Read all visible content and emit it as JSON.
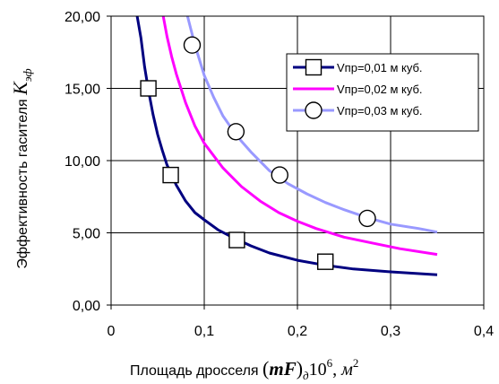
{
  "chart_data": {
    "type": "line",
    "xlabel": {
      "prefix": "Площадь дросселя",
      "formula_main": "(mF)",
      "formula_sub": "д",
      "formula_mid": "10",
      "formula_exp": "6",
      "formula_sep": ", ",
      "formula_unit": "м",
      "formula_unit_exp": "2"
    },
    "ylabel": {
      "prefix": "Эффективность гасителя",
      "symbol": "K",
      "symbol_sub": "эф"
    },
    "xlim": [
      0,
      0.4
    ],
    "ylim": [
      0,
      20
    ],
    "x_ticks": [
      "0",
      "0,1",
      "0,2",
      "0,3",
      "0,4"
    ],
    "x_tick_values": [
      0,
      0.1,
      0.2,
      0.3,
      0.4
    ],
    "y_ticks": [
      "0,00",
      "5,00",
      "10,00",
      "15,00",
      "20,00"
    ],
    "y_tick_values": [
      0,
      5,
      10,
      15,
      20
    ],
    "grid": true,
    "legend_position": "top-right",
    "series": [
      {
        "name": "Vпр=0,01 м куб.",
        "color": "#000080",
        "marker": "square",
        "curve": [
          [
            0.028,
            20.0
          ],
          [
            0.032,
            18.5
          ],
          [
            0.036,
            16.5
          ],
          [
            0.04,
            14.9
          ],
          [
            0.045,
            13.2
          ],
          [
            0.05,
            11.8
          ],
          [
            0.055,
            10.7
          ],
          [
            0.06,
            9.7
          ],
          [
            0.065,
            9.0
          ],
          [
            0.07,
            8.3
          ],
          [
            0.08,
            7.2
          ],
          [
            0.09,
            6.4
          ],
          [
            0.1,
            5.9
          ],
          [
            0.115,
            5.2
          ],
          [
            0.13,
            4.7
          ],
          [
            0.15,
            4.1
          ],
          [
            0.17,
            3.6
          ],
          [
            0.2,
            3.1
          ],
          [
            0.23,
            2.75
          ],
          [
            0.26,
            2.5
          ],
          [
            0.3,
            2.3
          ],
          [
            0.35,
            2.1
          ]
        ],
        "markers": [
          [
            0.04,
            15.0
          ],
          [
            0.064,
            9.0
          ],
          [
            0.135,
            4.5
          ],
          [
            0.23,
            3.0
          ]
        ]
      },
      {
        "name": "Vпр=0,02 м куб.",
        "color": "#ff00ff",
        "marker": "none",
        "curve": [
          [
            0.056,
            20.0
          ],
          [
            0.06,
            18.6
          ],
          [
            0.065,
            17.2
          ],
          [
            0.07,
            16.0
          ],
          [
            0.08,
            14.0
          ],
          [
            0.09,
            12.4
          ],
          [
            0.1,
            11.2
          ],
          [
            0.12,
            9.5
          ],
          [
            0.14,
            8.2
          ],
          [
            0.16,
            7.2
          ],
          [
            0.18,
            6.4
          ],
          [
            0.2,
            5.8
          ],
          [
            0.22,
            5.3
          ],
          [
            0.25,
            4.7
          ],
          [
            0.28,
            4.3
          ],
          [
            0.31,
            3.9
          ],
          [
            0.35,
            3.5
          ]
        ],
        "markers": []
      },
      {
        "name": "Vпр=0,03 м куб.",
        "color": "#9999ff",
        "marker": "circle",
        "curve": [
          [
            0.082,
            20.0
          ],
          [
            0.09,
            18.0
          ],
          [
            0.1,
            15.9
          ],
          [
            0.11,
            14.4
          ],
          [
            0.12,
            13.1
          ],
          [
            0.135,
            11.7
          ],
          [
            0.15,
            10.6
          ],
          [
            0.17,
            9.3
          ],
          [
            0.19,
            8.4
          ],
          [
            0.21,
            7.7
          ],
          [
            0.23,
            7.1
          ],
          [
            0.25,
            6.6
          ],
          [
            0.275,
            6.05
          ],
          [
            0.3,
            5.6
          ],
          [
            0.33,
            5.3
          ],
          [
            0.35,
            5.05
          ]
        ],
        "markers": [
          [
            0.087,
            18.0
          ],
          [
            0.134,
            12.0
          ],
          [
            0.181,
            9.0
          ],
          [
            0.275,
            6.0
          ]
        ]
      }
    ]
  }
}
